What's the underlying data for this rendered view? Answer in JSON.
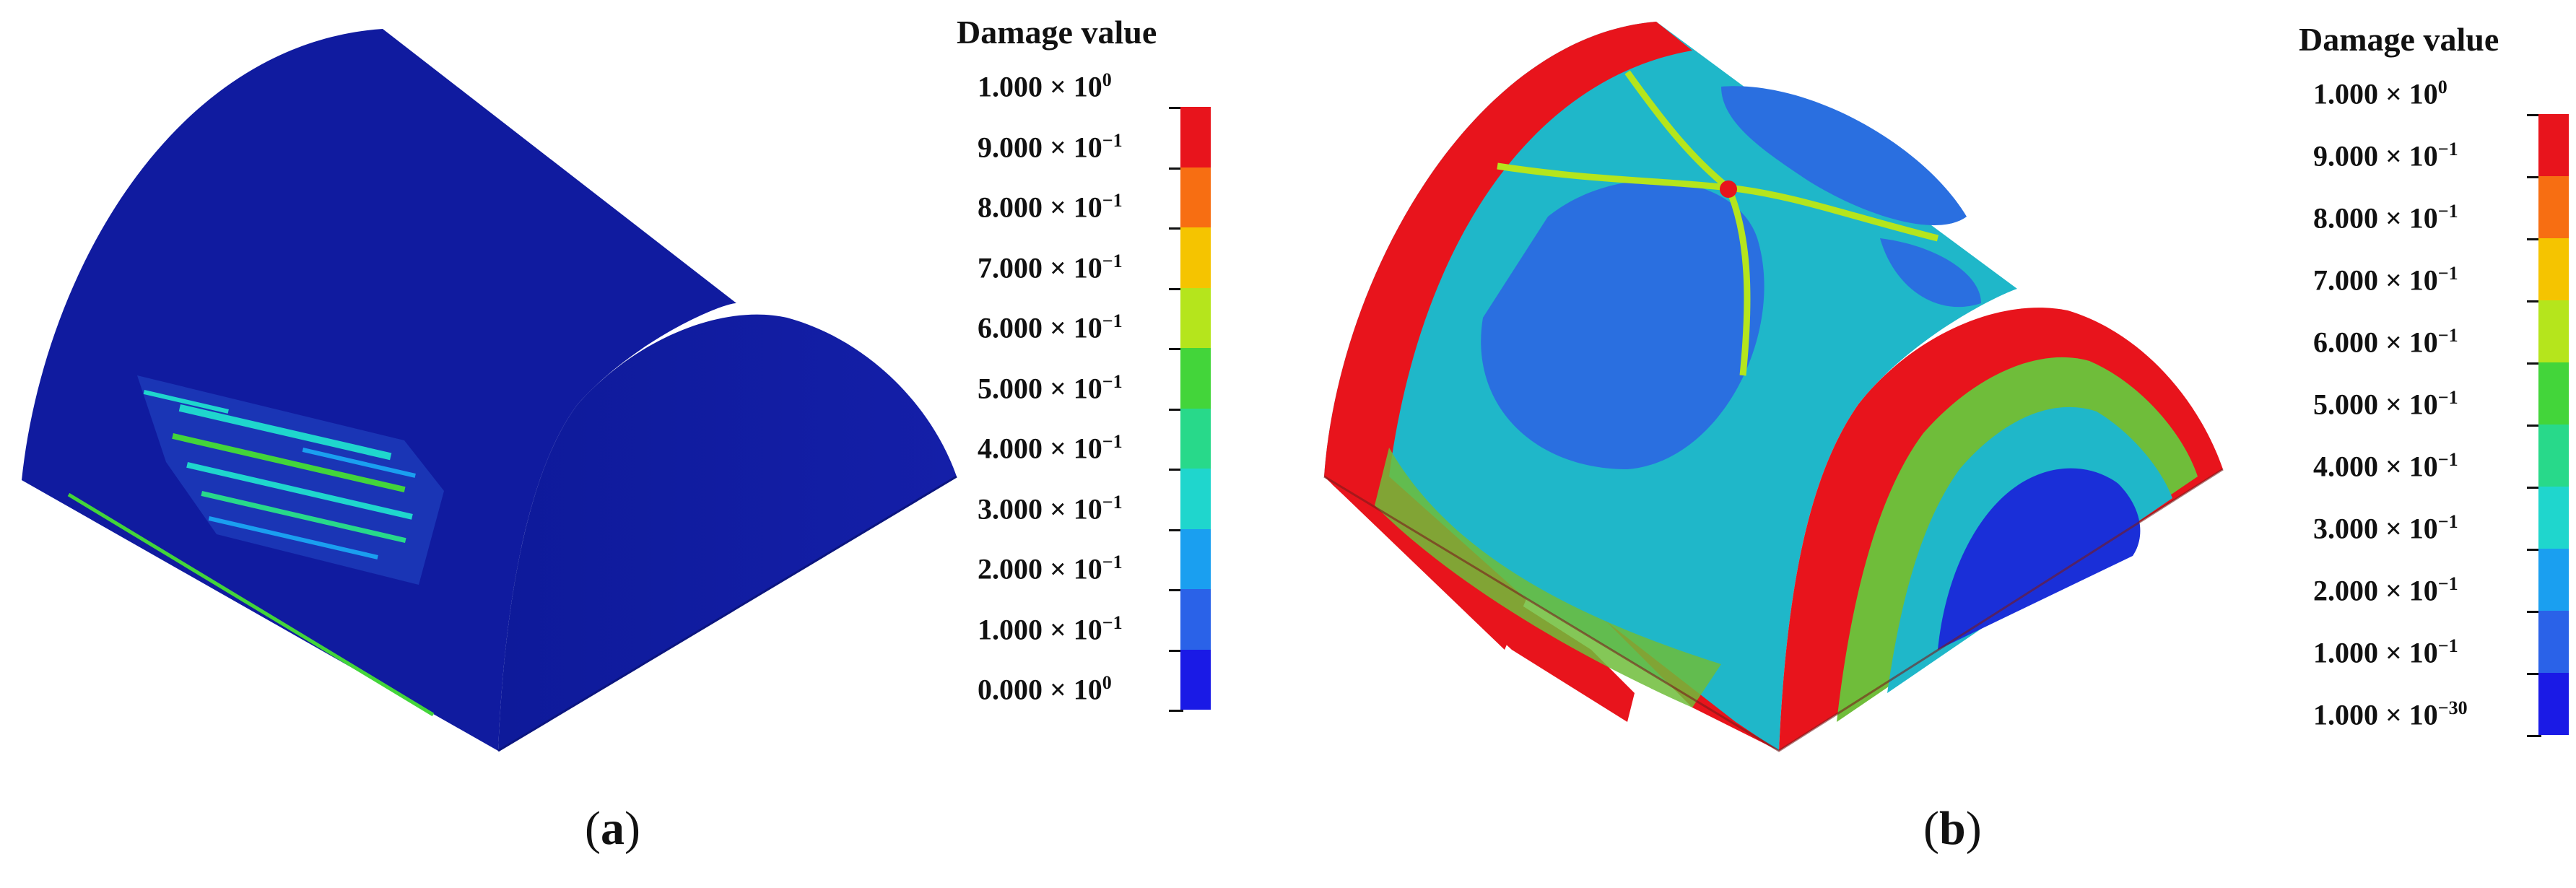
{
  "panel_a": {
    "caption_letter": "a",
    "legend": {
      "title": "Damage value",
      "labels": [
        {
          "mantissa": "1.000 × 10",
          "exp": "0"
        },
        {
          "mantissa": "9.000 × 10",
          "exp": "−1"
        },
        {
          "mantissa": "8.000 × 10",
          "exp": "−1"
        },
        {
          "mantissa": "7.000 × 10",
          "exp": "−1"
        },
        {
          "mantissa": "6.000 × 10",
          "exp": "−1"
        },
        {
          "mantissa": "5.000 × 10",
          "exp": "−1"
        },
        {
          "mantissa": "4.000 × 10",
          "exp": "−1"
        },
        {
          "mantissa": "3.000 × 10",
          "exp": "−1"
        },
        {
          "mantissa": "2.000 × 10",
          "exp": "−1"
        },
        {
          "mantissa": "1.000 × 10",
          "exp": "−1"
        },
        {
          "mantissa": "0.000 × 10",
          "exp": "0"
        }
      ]
    }
  },
  "panel_b": {
    "caption_letter": "b",
    "legend": {
      "title": "Damage value",
      "labels": [
        {
          "mantissa": "1.000 × 10",
          "exp": "0"
        },
        {
          "mantissa": "9.000 × 10",
          "exp": "−1"
        },
        {
          "mantissa": "8.000 × 10",
          "exp": "−1"
        },
        {
          "mantissa": "7.000 × 10",
          "exp": "−1"
        },
        {
          "mantissa": "6.000 × 10",
          "exp": "−1"
        },
        {
          "mantissa": "5.000 × 10",
          "exp": "−1"
        },
        {
          "mantissa": "4.000 × 10",
          "exp": "−1"
        },
        {
          "mantissa": "3.000 × 10",
          "exp": "−1"
        },
        {
          "mantissa": "2.000 × 10",
          "exp": "−1"
        },
        {
          "mantissa": "1.000 × 10",
          "exp": "−1"
        },
        {
          "mantissa": "1.000 × 10",
          "exp": "−30"
        }
      ]
    }
  },
  "colorbar_colors": [
    "#e8141c",
    "#f76e12",
    "#f5c400",
    "#b5e51c",
    "#43d53a",
    "#28d98a",
    "#1fd6cd",
    "#1a9ff0",
    "#2a62e8",
    "#1a1ae6"
  ]
}
